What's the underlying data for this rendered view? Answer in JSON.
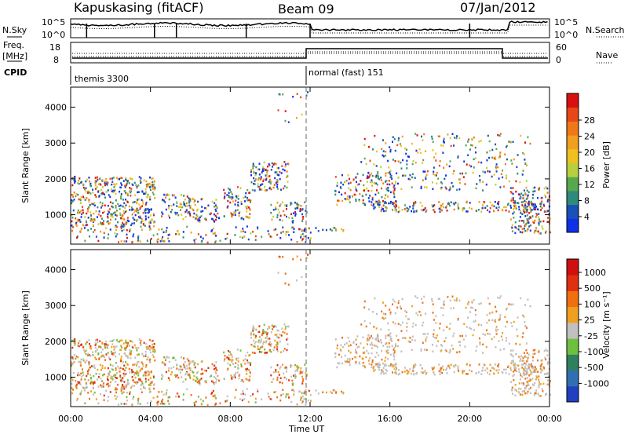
{
  "header": {
    "station": "Kapuskasing (fitACF)",
    "beam": "Beam 09",
    "date": "07/Jan/2012"
  },
  "top_panels": {
    "nsky_label": "N.Sky",
    "nsearch_label": "N.Search",
    "nsky_ticks": [
      "10^5",
      "10^0"
    ],
    "nsearch_ticks": [
      "10^5",
      "10^0"
    ],
    "freq_label_1": "Freq.",
    "freq_label_2": "[MHz]",
    "freq_ticks": [
      "18",
      "8"
    ],
    "nave_label": "Nave",
    "nave_ticks": [
      "60",
      "0"
    ],
    "cpid_label": "CPID",
    "cpid_modes": [
      {
        "name": "themis 3300",
        "start_hour": 0,
        "end_hour": 12
      },
      {
        "name": "normal (fast) 151",
        "start_hour": 12,
        "end_hour": 24
      }
    ]
  },
  "chart_data": [
    {
      "type": "heatmap",
      "title": "",
      "ylabel": "Slant Range [km]",
      "xlabel": "Time UT",
      "x_ticks": [
        "00:00",
        "04:00",
        "08:00",
        "12:00",
        "16:00",
        "20:00",
        "00:00"
      ],
      "y_ticks": [
        "1000",
        "2000",
        "3000",
        "4000"
      ],
      "ylim": [
        180,
        4560
      ],
      "xlim_hours": [
        0,
        24
      ],
      "colorbar": {
        "label": "Power [dB]",
        "ticks": [
          "4",
          "8",
          "12",
          "16",
          "20",
          "24",
          "28"
        ],
        "colors": [
          "#1030e8",
          "#1850b8",
          "#308a7a",
          "#58a850",
          "#b8d040",
          "#f0c020",
          "#f0a020",
          "#f07818",
          "#e84818",
          "#d81010"
        ]
      }
    },
    {
      "type": "heatmap",
      "title": "",
      "ylabel": "Slant Range [km]",
      "xlabel": "Time UT",
      "x_ticks": [
        "00:00",
        "04:00",
        "08:00",
        "12:00",
        "16:00",
        "20:00",
        "00:00"
      ],
      "y_ticks": [
        "1000",
        "2000",
        "3000",
        "4000"
      ],
      "ylim": [
        180,
        4560
      ],
      "xlim_hours": [
        0,
        24
      ],
      "colorbar": {
        "label": "Velocity [m s⁻¹]",
        "ticks": [
          "1000",
          "500",
          "100",
          "25",
          "-25",
          "-100",
          "-500",
          "-1000"
        ],
        "colors": [
          "#2040c0",
          "#3070b0",
          "#308060",
          "#70c040",
          "#c0c0c0",
          "#f0a020",
          "#f07010",
          "#e03010",
          "#d01010"
        ]
      }
    }
  ]
}
